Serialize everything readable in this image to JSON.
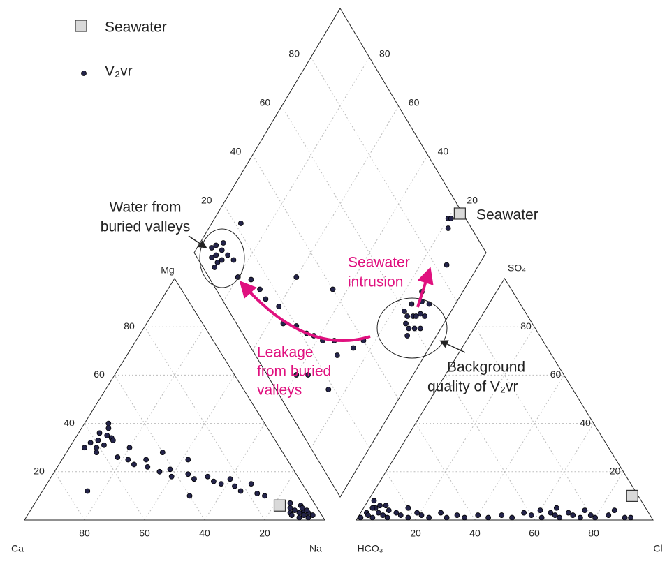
{
  "chart_data": {
    "type": "piper",
    "legend": [
      {
        "name": "Seawater",
        "marker": "square",
        "color": "#d9d9d9"
      },
      {
        "name": "V₂vr",
        "marker": "circle",
        "color": "#24244a"
      }
    ],
    "cation": {
      "labels": {
        "ca": "Ca",
        "na": "Na",
        "mg": "Mg"
      },
      "mg_ticks": [
        20,
        40,
        60,
        80
      ],
      "ca_ticks": [
        80,
        60,
        40,
        20
      ],
      "seawater": {
        "na": 82,
        "mg": 6
      },
      "samples": {
        "na": [
          8,
          10,
          6,
          9,
          12,
          7,
          11,
          9,
          5,
          13,
          10,
          8,
          18,
          22,
          25,
          28,
          30,
          35,
          38,
          40,
          45,
          48,
          52,
          55,
          58,
          60,
          63,
          66,
          68,
          72,
          75,
          20,
          32,
          42,
          15,
          50,
          86,
          88,
          90,
          92,
          89,
          91,
          93,
          87,
          94,
          90,
          88,
          92,
          95,
          85,
          91
        ],
        "mg": [
          33,
          35,
          32,
          30,
          34,
          36,
          31,
          38,
          30,
          33,
          28,
          40,
          26,
          25,
          23,
          25,
          22,
          20,
          21,
          18,
          19,
          17,
          18,
          16,
          15,
          17,
          14,
          12,
          15,
          11,
          10,
          30,
          28,
          25,
          12,
          10,
          5,
          4,
          3,
          2,
          6,
          4,
          3,
          3,
          1,
          5,
          2,
          4,
          2,
          7,
          1
        ]
      }
    },
    "anion": {
      "labels": {
        "hco3": "HCO₃",
        "cl": "Cl",
        "so4": "SO₄"
      },
      "cl_ticks": [
        20,
        40,
        60,
        80
      ],
      "so4_ticks": [
        20,
        40,
        60,
        80
      ],
      "seawater": {
        "cl": 88,
        "so4": 10
      },
      "samples": {
        "cl": [
          1,
          2,
          3,
          4,
          5,
          6,
          7,
          8,
          9,
          10,
          12,
          14,
          15,
          17,
          19,
          21,
          24,
          27,
          30,
          33,
          36,
          40,
          44,
          48,
          52,
          55,
          58,
          60,
          62,
          64,
          66,
          68,
          70,
          72,
          75,
          78,
          80,
          84,
          90,
          92,
          2,
          5,
          3,
          65,
          75,
          85
        ],
        "so4": [
          1,
          3,
          2,
          5,
          1,
          3,
          6,
          2,
          4,
          1,
          3,
          2,
          5,
          1,
          3,
          2,
          1,
          3,
          1,
          2,
          1,
          2,
          1,
          2,
          1,
          3,
          2,
          4,
          1,
          3,
          2,
          1,
          3,
          2,
          1,
          2,
          1,
          2,
          1,
          1,
          8,
          6,
          5,
          5,
          4,
          4
        ]
      }
    },
    "diamond": {
      "left_ticks": [
        20,
        40,
        60,
        80
      ],
      "right_ticks": [
        20,
        40,
        60,
        80
      ],
      "seawater": {
        "na": 83,
        "cl_so4": 99
      },
      "samples": {
        "na": [
          8,
          6,
          10,
          9,
          7,
          11,
          5,
          12,
          8,
          10,
          15,
          20,
          25,
          30,
          34,
          40,
          45,
          50,
          55,
          58,
          62,
          66,
          70,
          74,
          76,
          74,
          64,
          10,
          40,
          55,
          60,
          86,
          88,
          89,
          90,
          87,
          91,
          92,
          88,
          85,
          90,
          93,
          86,
          89,
          91,
          84,
          89,
          80,
          81,
          82
        ],
        "cl_so4": [
          7,
          9,
          6,
          10,
          5,
          8,
          7,
          11,
          12,
          4,
          12,
          10,
          14,
          15,
          15,
          18,
          16,
          20,
          22,
          24,
          26,
          30,
          28,
          35,
          40,
          18,
          14,
          22,
          30,
          40,
          10,
          60,
          62,
          63,
          65,
          58,
          60,
          66,
          68,
          64,
          56,
          62,
          70,
          58,
          70,
          60,
          84,
          94,
          95,
          92
        ]
      }
    },
    "annotations": {
      "buried_valleys": [
        "Water from",
        "buried valleys"
      ],
      "intrusion": [
        "Seawater",
        "intrusion"
      ],
      "leakage": [
        "Leakage",
        "from buried",
        "valleys"
      ],
      "background": [
        "Background",
        "quality  of V₂vr"
      ],
      "seawater": "Seawater"
    }
  }
}
